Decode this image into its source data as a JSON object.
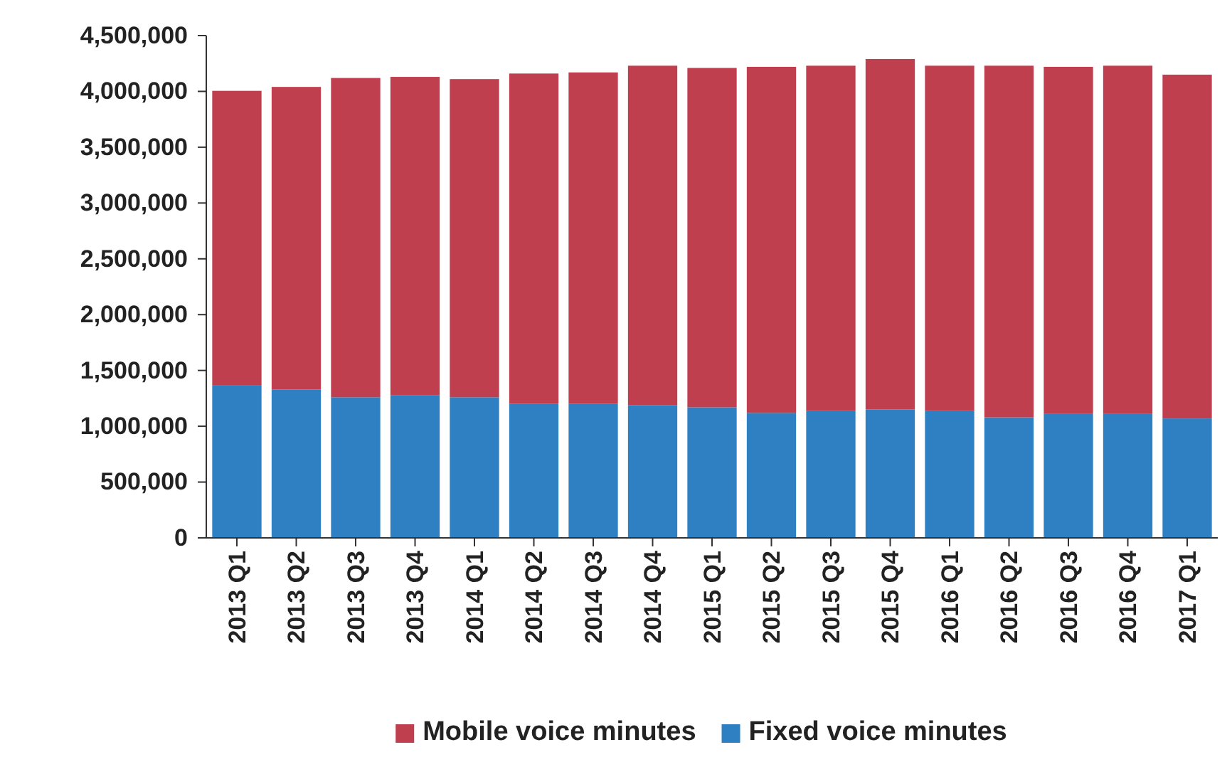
{
  "chart_data": {
    "type": "bar",
    "stacked": true,
    "categories": [
      "2013 Q1",
      "2013 Q2",
      "2013 Q3",
      "2013 Q4",
      "2014 Q1",
      "2014 Q2",
      "2014 Q3",
      "2014 Q4",
      "2015 Q1",
      "2015 Q2",
      "2015 Q3",
      "2015 Q4",
      "2016 Q1",
      "2016 Q2",
      "2016 Q3",
      "2016 Q4",
      "2017 Q1"
    ],
    "series": [
      {
        "name": "Fixed voice minutes",
        "color": "#2f80c2",
        "values": [
          1365000,
          1330000,
          1260000,
          1280000,
          1260000,
          1200000,
          1200000,
          1190000,
          1170000,
          1120000,
          1140000,
          1150000,
          1140000,
          1080000,
          1110000,
          1110000,
          1070000
        ]
      },
      {
        "name": "Mobile voice minutes",
        "color": "#bf3f4e",
        "values": [
          2640000,
          2710000,
          2860000,
          2850000,
          2850000,
          2960000,
          2970000,
          3040000,
          3040000,
          3100000,
          3090000,
          3140000,
          3090000,
          3150000,
          3110000,
          3120000,
          3080000
        ]
      }
    ],
    "ylim": [
      0,
      4500000
    ],
    "yticks": [
      {
        "value": 0,
        "label": "0"
      },
      {
        "value": 500000,
        "label": "500,000"
      },
      {
        "value": 1000000,
        "label": "1,000,000"
      },
      {
        "value": 1500000,
        "label": "1,500,000"
      },
      {
        "value": 2000000,
        "label": "2,000,000"
      },
      {
        "value": 2500000,
        "label": "2,500,000"
      },
      {
        "value": 3000000,
        "label": "3,000,000"
      },
      {
        "value": 3500000,
        "label": "3,500,000"
      },
      {
        "value": 4000000,
        "label": "4,000,000"
      },
      {
        "value": 4500000,
        "label": "4,500,000"
      }
    ],
    "legend": "bottom"
  }
}
